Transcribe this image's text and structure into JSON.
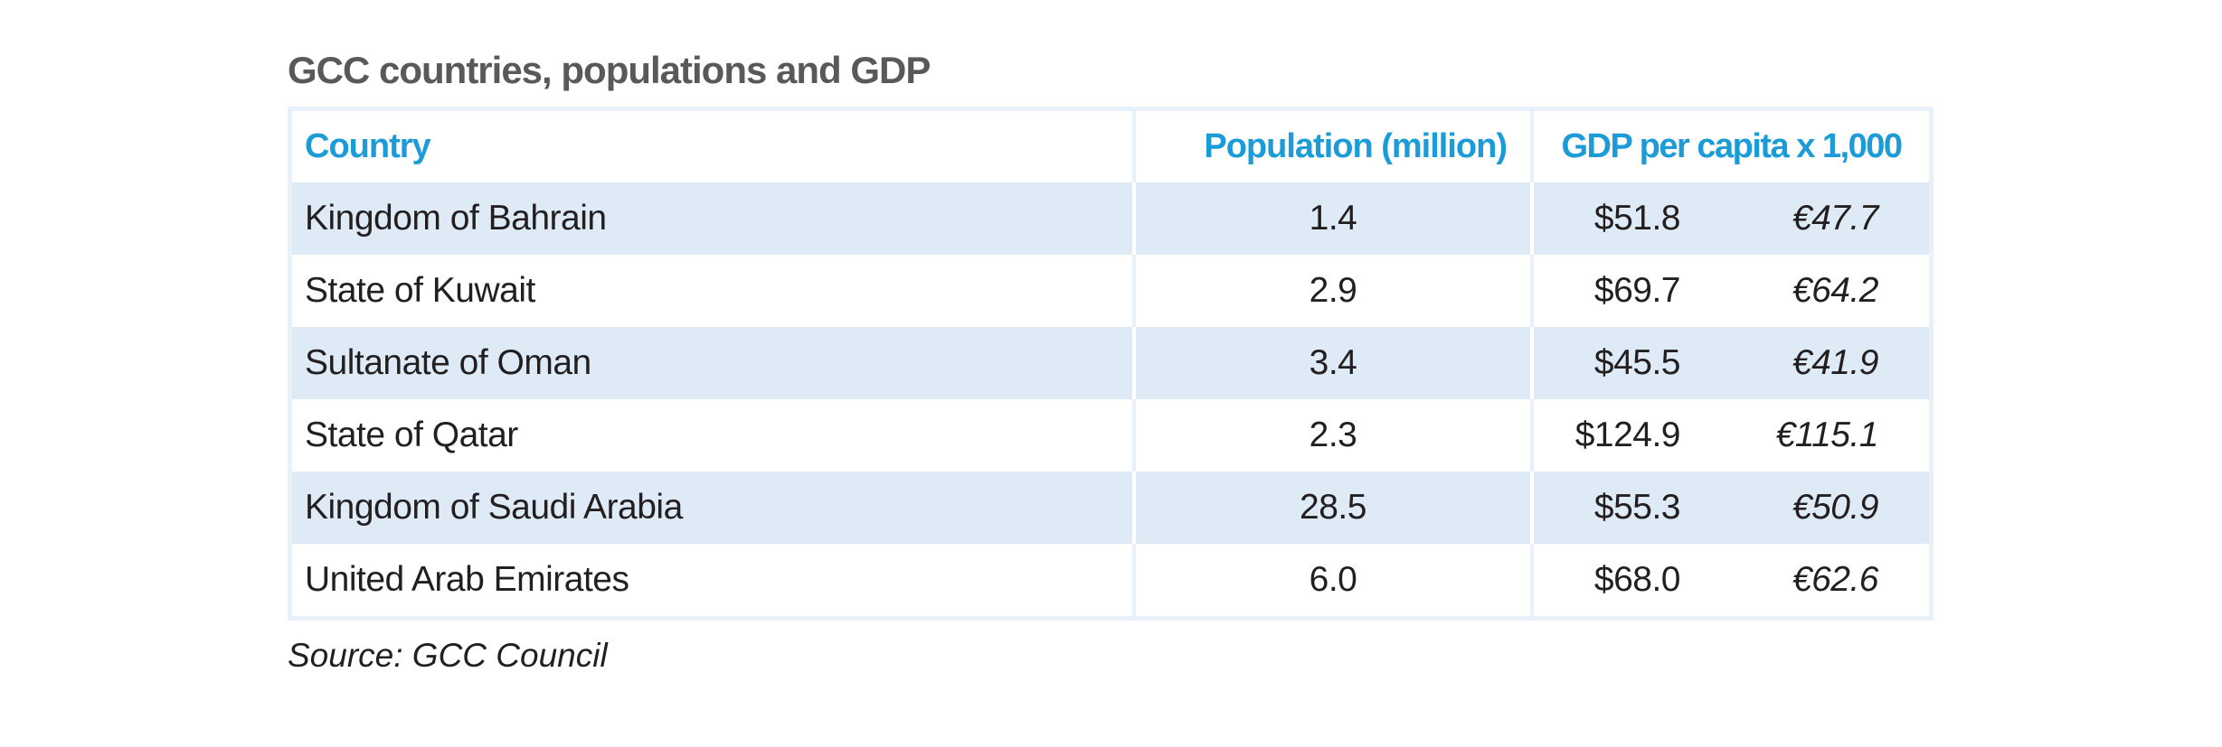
{
  "title": "GCC countries, populations and GDP",
  "source_note": "Source: GCC Council",
  "colors": {
    "header_text_blue": "#1b9bd7",
    "title_gray": "#58595b",
    "body_text": "#231f20",
    "row_alt_blue": "#dfeaf7",
    "table_border_blue": "#e8f0fa"
  },
  "table": {
    "columns": [
      "Country",
      "Population (million)",
      "GDP per capita x 1,000"
    ],
    "rows": [
      {
        "country": "Kingdom of Bahrain",
        "population": "1.4",
        "gdp_usd": "$51.8",
        "gdp_eur": "€47.7"
      },
      {
        "country": "State of Kuwait",
        "population": "2.9",
        "gdp_usd": "$69.7",
        "gdp_eur": "€64.2"
      },
      {
        "country": "Sultanate of Oman",
        "population": "3.4",
        "gdp_usd": "$45.5",
        "gdp_eur": "€41.9"
      },
      {
        "country": "State of Qatar",
        "population": "2.3",
        "gdp_usd": "$124.9",
        "gdp_eur": "€115.1"
      },
      {
        "country": "Kingdom of Saudi Arabia",
        "population": "28.5",
        "gdp_usd": "$55.3",
        "gdp_eur": "€50.9"
      },
      {
        "country": "United Arab Emirates",
        "population": "6.0",
        "gdp_usd": "$68.0",
        "gdp_eur": "€62.6"
      }
    ]
  },
  "chart_data": {
    "type": "table",
    "title": "GCC countries, populations and GDP",
    "columns": [
      "Country",
      "Population (million)",
      "GDP per capita x 1,000 (USD)",
      "GDP per capita x 1,000 (EUR)"
    ],
    "rows": [
      [
        "Kingdom of Bahrain",
        1.4,
        51.8,
        47.7
      ],
      [
        "State of Kuwait",
        2.9,
        69.7,
        64.2
      ],
      [
        "Sultanate of Oman",
        3.4,
        45.5,
        41.9
      ],
      [
        "State of Qatar",
        2.3,
        124.9,
        115.1
      ],
      [
        "Kingdom of Saudi Arabia",
        28.5,
        55.3,
        50.9
      ],
      [
        "United Arab Emirates",
        6.0,
        68.0,
        62.6
      ]
    ],
    "source": "Source: GCC Council"
  }
}
